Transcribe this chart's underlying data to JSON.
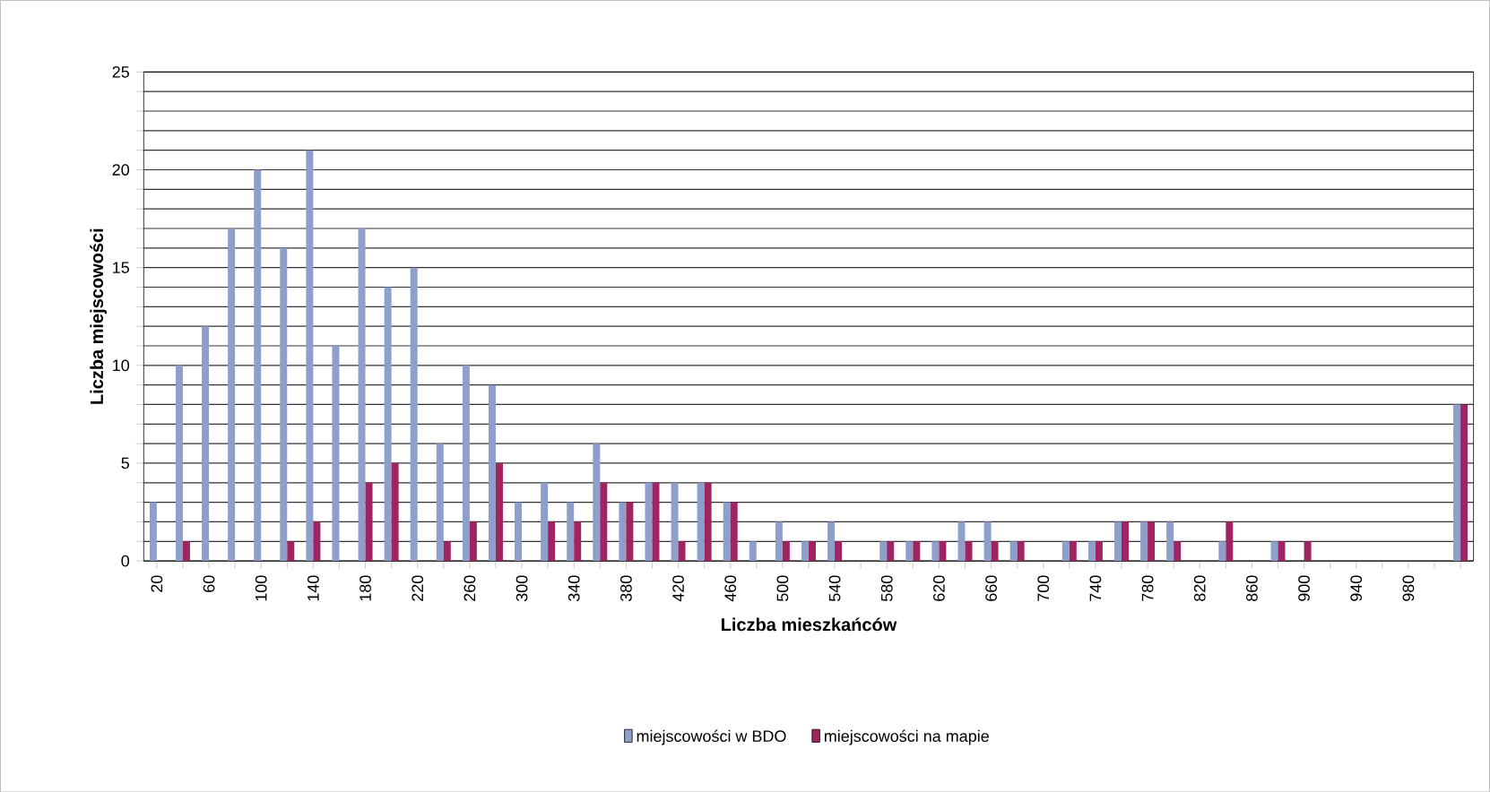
{
  "chart_data": {
    "type": "bar",
    "xlabel": "Liczba mieszkańców",
    "ylabel": "Liczba miejscowości",
    "categories": [
      "20",
      null,
      "60",
      null,
      "100",
      null,
      "140",
      null,
      "180",
      null,
      "220",
      null,
      "260",
      null,
      "300",
      null,
      "340",
      null,
      "380",
      null,
      "420",
      null,
      "460",
      null,
      "500",
      null,
      "540",
      null,
      "580",
      null,
      "620",
      null,
      "660",
      null,
      "700",
      null,
      "740",
      null,
      "780",
      null,
      "820",
      null,
      "860",
      null,
      "900",
      null,
      "940",
      null,
      "980",
      null,
      null
    ],
    "series": [
      {
        "name": "miejscowości w BDO",
        "color": "#8e9fcb",
        "values": [
          3,
          10,
          12,
          17,
          20,
          16,
          21,
          11,
          17,
          14,
          15,
          6,
          10,
          9,
          3,
          4,
          3,
          6,
          3,
          4,
          4,
          4,
          3,
          1,
          2,
          1,
          2,
          0,
          1,
          1,
          1,
          2,
          2,
          1,
          0,
          1,
          1,
          2,
          2,
          2,
          0,
          1,
          0,
          1,
          0,
          0,
          0,
          0,
          0,
          0,
          8
        ]
      },
      {
        "name": "miejscowości na mapie",
        "color": "#a0245f",
        "values": [
          0,
          1,
          0,
          0,
          0,
          1,
          2,
          0,
          4,
          5,
          0,
          1,
          2,
          5,
          0,
          2,
          2,
          4,
          3,
          4,
          1,
          4,
          3,
          0,
          1,
          1,
          1,
          0,
          1,
          1,
          1,
          1,
          1,
          1,
          0,
          1,
          1,
          2,
          2,
          1,
          0,
          2,
          0,
          1,
          1,
          0,
          0,
          0,
          0,
          0,
          8
        ]
      }
    ],
    "ylim": [
      0,
      25
    ],
    "yticks": [
      0,
      {
        "value": 1,
        "label": null
      },
      {
        "value": 2,
        "label": null
      },
      {
        "value": 3,
        "label": null
      },
      {
        "value": 4,
        "label": null
      },
      5,
      {
        "value": 6,
        "label": null
      },
      {
        "value": 7,
        "label": null
      },
      {
        "value": 8,
        "label": null
      },
      {
        "value": 9,
        "label": null
      },
      10,
      {
        "value": 11,
        "label": null
      },
      {
        "value": 12,
        "label": null
      },
      {
        "value": 13,
        "label": null
      },
      {
        "value": 14,
        "label": null
      },
      15,
      {
        "value": 16,
        "label": null
      },
      {
        "value": 17,
        "label": null
      },
      {
        "value": 18,
        "label": null
      },
      {
        "value": 19,
        "label": null
      },
      20,
      {
        "value": 21,
        "label": null
      },
      {
        "value": 22,
        "label": null
      },
      {
        "value": 23,
        "label": null
      },
      {
        "value": 24,
        "label": null
      },
      25
    ],
    "grid": "y",
    "legend": "bottom"
  }
}
